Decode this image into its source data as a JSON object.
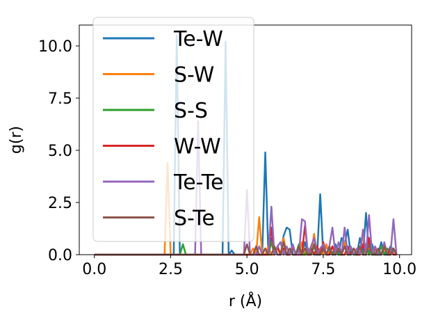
{
  "chart_data": {
    "type": "line",
    "xlabel": "r (Å)",
    "ylabel": "g(r)",
    "xlim": [
      -0.495,
      10.395
    ],
    "ylim": [
      0,
      11.0
    ],
    "xticks": [
      0.0,
      2.5,
      5.0,
      7.5,
      10.0
    ],
    "xtick_labels": [
      "0.0",
      "2.5",
      "5.0",
      "7.5",
      "10.0"
    ],
    "yticks": [
      0.0,
      2.5,
      5.0,
      7.5,
      10.0
    ],
    "ytick_labels": [
      "0.0",
      "2.5",
      "5.0",
      "7.5",
      "10.0"
    ],
    "grid": false,
    "legend_position": "upper-left",
    "x": [
      0.0,
      0.1,
      0.2,
      0.3,
      0.4,
      0.5,
      0.6,
      0.7,
      0.8,
      0.9,
      1.0,
      1.1,
      1.2,
      1.3,
      1.4,
      1.5,
      1.6,
      1.7,
      1.8,
      1.9,
      2.0,
      2.1,
      2.2,
      2.3,
      2.4,
      2.5,
      2.6,
      2.7,
      2.8,
      2.9,
      3.0,
      3.1,
      3.2,
      3.3,
      3.4,
      3.5,
      3.6,
      3.7,
      3.8,
      3.9,
      4.0,
      4.1,
      4.2,
      4.3,
      4.4,
      4.5,
      4.6,
      4.7,
      4.8,
      4.9,
      5.0,
      5.1,
      5.2,
      5.3,
      5.4,
      5.5,
      5.6,
      5.7,
      5.8,
      5.9,
      6.0,
      6.1,
      6.2,
      6.3,
      6.4,
      6.5,
      6.6,
      6.7,
      6.8,
      6.9,
      7.0,
      7.1,
      7.2,
      7.3,
      7.4,
      7.5,
      7.6,
      7.7,
      7.8,
      7.9,
      8.0,
      8.1,
      8.2,
      8.3,
      8.4,
      8.5,
      8.6,
      8.7,
      8.8,
      8.9,
      9.0,
      9.1,
      9.2,
      9.3,
      9.4,
      9.5,
      9.6,
      9.7,
      9.8,
      9.9
    ],
    "series": [
      {
        "name": "Te-W",
        "color": "#1f77b4",
        "values": [
          0,
          0,
          0,
          0,
          0,
          0,
          0,
          0,
          0,
          0,
          0,
          0,
          0,
          0,
          0,
          0,
          0,
          0,
          0,
          0,
          0,
          0,
          0,
          0,
          0,
          0,
          0,
          10.5,
          0,
          0,
          0,
          0,
          0,
          0,
          0,
          0,
          0,
          0,
          0,
          0,
          0,
          0,
          0,
          10.2,
          0,
          0.2,
          0,
          0,
          0,
          0,
          0,
          0,
          0,
          0,
          0,
          0,
          4.9,
          0,
          0.8,
          0,
          0.3,
          0,
          0.9,
          1.3,
          1.2,
          0,
          0,
          0.3,
          0,
          0.6,
          0,
          0.4,
          0,
          0,
          2.9,
          0,
          0.4,
          0.2,
          0,
          0.5,
          0,
          0.8,
          0.5,
          1.2,
          0,
          0.3,
          0,
          0.8,
          0,
          2.0,
          0,
          0.5,
          0,
          0,
          0.6,
          0,
          0,
          0.4,
          0.2,
          0
        ]
      },
      {
        "name": "S-W",
        "color": "#ff7f0e",
        "values": [
          0,
          0,
          0,
          0,
          0,
          0,
          0,
          0,
          0,
          0,
          0,
          0,
          0,
          0,
          0,
          0,
          0,
          0,
          0,
          0,
          0,
          0,
          0,
          0,
          4.4,
          0,
          0,
          0,
          0,
          0,
          0,
          0,
          0,
          0,
          0,
          0,
          0,
          0,
          0,
          0,
          0,
          0,
          0,
          0,
          0,
          0,
          0,
          0,
          0,
          0,
          0,
          0,
          0.3,
          0,
          1.8,
          0,
          0,
          0.4,
          0,
          0,
          0.3,
          0,
          0.8,
          0,
          0,
          0.4,
          0,
          0,
          0.6,
          0,
          0,
          0,
          1.0,
          0,
          0.2,
          0,
          0.5,
          0,
          0.4,
          0,
          0.3,
          0,
          0.6,
          0,
          0.3,
          0,
          0,
          0,
          1.0,
          0,
          0.4,
          0,
          0.3,
          0,
          0,
          0.3,
          0,
          0,
          0.3,
          0
        ]
      },
      {
        "name": "S-S",
        "color": "#2ca02c",
        "values": [
          0,
          0,
          0,
          0,
          0,
          0,
          0,
          0,
          0,
          0,
          0,
          0,
          0,
          0,
          0,
          0,
          0,
          0,
          0,
          0,
          0,
          0,
          0,
          0,
          0,
          0,
          0,
          0,
          0,
          0.5,
          0,
          0,
          0,
          0,
          0,
          0,
          0,
          0,
          0,
          0,
          0,
          0,
          0,
          0,
          0,
          0,
          0,
          0,
          0,
          0,
          0,
          0,
          0,
          0,
          0,
          0,
          0,
          0,
          0.6,
          0,
          0.4,
          0,
          0.3,
          0,
          0,
          0.4,
          0,
          0.5,
          0,
          0,
          0.3,
          0,
          0.4,
          0,
          0,
          0.3,
          0,
          0.4,
          0,
          0.3,
          0,
          0,
          0.4,
          0,
          0.3,
          0,
          0,
          0.4,
          0,
          0.5,
          0,
          0.3,
          0,
          0,
          0.4,
          0,
          0.3,
          0,
          0.3,
          0
        ]
      },
      {
        "name": "W-W",
        "color": "#d62728",
        "values": [
          0,
          0,
          0,
          0,
          0,
          0,
          0,
          0,
          0,
          0,
          0,
          0,
          0,
          0,
          0,
          0,
          0,
          0,
          0,
          0,
          0,
          0,
          0,
          0,
          0,
          0,
          0,
          0,
          0,
          0,
          0,
          0,
          0,
          0,
          0,
          0,
          0,
          0,
          0,
          0,
          0,
          0,
          0,
          0,
          0,
          0,
          0,
          0,
          0,
          0,
          0,
          0,
          0,
          0,
          0,
          0,
          0,
          0,
          1.3,
          0,
          0.4,
          0,
          0.3,
          0,
          0,
          0.4,
          0,
          0,
          0,
          1.4,
          0,
          0.3,
          0,
          0.4,
          0,
          0.6,
          0,
          0,
          0.4,
          0,
          0.3,
          0,
          0,
          0.4,
          0,
          0.3,
          0,
          0,
          0.5,
          0,
          0.8,
          0,
          0.3,
          0,
          0,
          0.4,
          0,
          0.3,
          0,
          0
        ]
      },
      {
        "name": "Te-Te",
        "color": "#9467bd",
        "values": [
          0,
          0,
          0,
          0,
          0,
          0,
          0,
          0,
          0,
          0,
          0,
          0,
          0,
          0,
          0,
          0,
          0,
          0,
          0,
          0,
          0,
          0,
          0,
          0,
          0,
          0,
          0,
          0,
          0,
          0,
          0,
          0,
          0,
          0,
          6.4,
          0,
          0,
          0,
          0,
          0,
          0,
          0,
          0,
          0,
          0,
          0,
          0,
          0,
          0,
          0,
          3.1,
          0,
          0,
          0,
          0.4,
          0,
          0.3,
          0,
          2.3,
          0,
          0.4,
          0.6,
          0,
          0.4,
          0,
          0.5,
          0,
          0,
          1.7,
          1.6,
          0,
          0.4,
          0.8,
          0,
          0.3,
          0.5,
          0,
          0.4,
          1.3,
          0,
          0.6,
          0,
          1.3,
          0,
          0.4,
          0,
          0.3,
          0,
          1.2,
          0,
          1.9,
          0,
          0.4,
          0,
          0,
          0.6,
          0,
          0,
          1.7,
          0
        ]
      },
      {
        "name": "S-Te",
        "color": "#8c564b",
        "values": [
          0,
          0,
          0,
          0,
          0,
          0,
          0,
          0,
          0,
          0,
          0,
          0,
          0,
          0,
          0,
          0,
          0,
          0,
          0,
          0,
          0,
          0,
          0,
          0,
          0,
          0,
          0,
          0,
          0,
          0,
          0,
          0,
          0,
          0,
          0,
          0,
          0,
          0,
          0,
          0,
          0,
          0,
          0,
          0,
          0,
          0,
          0,
          0,
          0,
          0,
          0.5,
          0,
          0,
          0.4,
          0,
          0,
          0.3,
          0,
          0,
          0.4,
          0,
          0,
          0.6,
          0,
          0.3,
          0,
          0,
          0.4,
          0,
          0.3,
          0,
          0,
          0.5,
          0,
          0,
          0.3,
          0,
          0.4,
          0,
          0,
          0.3,
          0,
          0.4,
          0,
          0,
          0.3,
          0,
          0.4,
          0,
          0,
          0.5,
          0,
          0,
          0.3,
          0,
          0.4,
          0,
          0,
          0.3,
          0
        ]
      }
    ]
  }
}
